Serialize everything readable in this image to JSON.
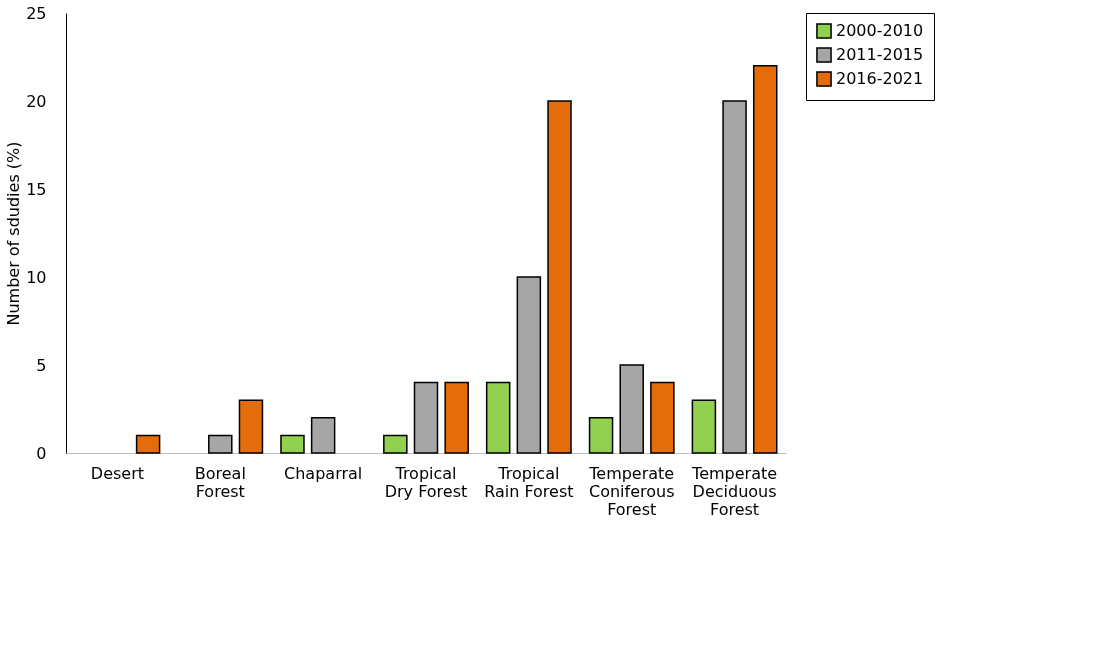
{
  "chart_data": {
    "type": "bar",
    "ylabel": "Number of sdudies (%)",
    "categories": [
      "Desert",
      "Boreal Forest",
      "Chaparral",
      "Tropical Dry Forest",
      "Tropical Rain Forest",
      "Temperate Coniferous Forest",
      "Temperate Deciduous Forest"
    ],
    "series": [
      {
        "name": "2000-2010",
        "color": "#92d050",
        "values": [
          0,
          0,
          1,
          1,
          4,
          2,
          3
        ]
      },
      {
        "name": "2011-2015",
        "color": "#a6a6a6",
        "values": [
          0,
          1,
          2,
          4,
          10,
          5,
          20
        ]
      },
      {
        "name": "2016-2021",
        "color": "#e46c0a",
        "values": [
          1,
          3,
          0,
          4,
          20,
          4,
          22
        ]
      }
    ],
    "ylim": [
      0,
      25
    ],
    "yticks": [
      0,
      5,
      10,
      15,
      20,
      25
    ],
    "grid": false,
    "legend": "top right"
  }
}
